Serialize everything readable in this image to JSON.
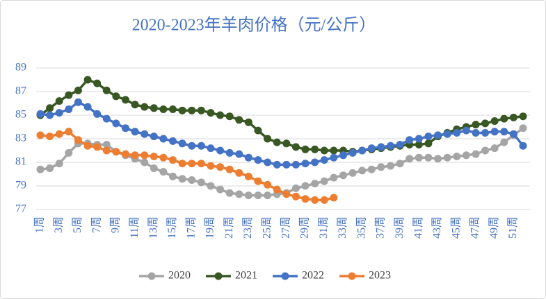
{
  "chart_data": {
    "type": "line",
    "title": "2020-2023年羊肉价格（元/公斤）",
    "categories": [
      "1周",
      null,
      "3周",
      null,
      "5周",
      null,
      "7周",
      null,
      "9周",
      null,
      "11周",
      null,
      "13周",
      null,
      "15周",
      null,
      "17周",
      null,
      "19周",
      null,
      "21周",
      null,
      "23周",
      null,
      "25周",
      null,
      "27周",
      null,
      "29周",
      null,
      "31周",
      null,
      "33周",
      null,
      "35周",
      null,
      "37周",
      null,
      "39周",
      null,
      "41周",
      null,
      "43周",
      null,
      "45周",
      null,
      "47周",
      null,
      "49周",
      null,
      "51周",
      null
    ],
    "ylim": [
      77,
      89
    ],
    "yticks": [
      77,
      79,
      81,
      83,
      85,
      87,
      89
    ],
    "grid": true,
    "legend": "bottom",
    "series": [
      {
        "name": "2020",
        "color": "#a5a5a5",
        "values": [
          80.4,
          80.5,
          80.9,
          81.8,
          82.6,
          82.6,
          82.5,
          82.5,
          81.9,
          81.6,
          81.3,
          81.0,
          80.5,
          80.2,
          79.8,
          79.6,
          79.5,
          79.3,
          79.0,
          78.7,
          78.4,
          78.3,
          78.2,
          78.2,
          78.2,
          78.3,
          78.4,
          78.8,
          79.0,
          79.2,
          79.4,
          79.7,
          79.9,
          80.1,
          80.3,
          80.4,
          80.6,
          80.7,
          80.9,
          81.3,
          81.4,
          81.4,
          81.3,
          81.4,
          81.5,
          81.6,
          81.7,
          82.0,
          82.2,
          82.7,
          83.3,
          83.9
        ]
      },
      {
        "name": "2021",
        "color": "#385723",
        "values": [
          85.0,
          85.6,
          86.2,
          86.7,
          87.1,
          88.0,
          87.7,
          87.1,
          86.6,
          86.3,
          85.9,
          85.7,
          85.6,
          85.5,
          85.5,
          85.4,
          85.4,
          85.4,
          85.2,
          85.0,
          84.9,
          84.6,
          84.4,
          83.7,
          83.0,
          82.7,
          82.6,
          82.3,
          82.1,
          82.1,
          82.0,
          82.0,
          82.0,
          81.9,
          82.0,
          82.1,
          82.2,
          82.3,
          82.4,
          82.5,
          82.5,
          82.6,
          83.2,
          83.5,
          83.8,
          84.0,
          84.2,
          84.3,
          84.5,
          84.7,
          84.8,
          84.9
        ]
      },
      {
        "name": "2022",
        "color": "#4472c4",
        "values": [
          85.1,
          85.0,
          85.2,
          85.5,
          86.1,
          85.7,
          85.1,
          84.7,
          84.3,
          83.9,
          83.6,
          83.4,
          83.2,
          83.0,
          82.8,
          82.6,
          82.4,
          82.4,
          82.2,
          82.0,
          81.8,
          81.7,
          81.4,
          81.2,
          81.0,
          80.8,
          80.8,
          80.8,
          80.9,
          81.0,
          81.2,
          81.4,
          81.6,
          81.8,
          82.0,
          82.2,
          82.3,
          82.4,
          82.5,
          82.9,
          83.0,
          83.2,
          83.3,
          83.4,
          83.5,
          83.7,
          83.5,
          83.5,
          83.6,
          83.6,
          83.4,
          82.4
        ]
      },
      {
        "name": "2023",
        "color": "#ed7d31",
        "values": [
          83.3,
          83.2,
          83.4,
          83.6,
          82.9,
          82.4,
          82.3,
          82.0,
          81.9,
          81.7,
          81.6,
          81.6,
          81.5,
          81.4,
          81.2,
          80.9,
          80.9,
          80.9,
          80.7,
          80.6,
          80.4,
          80.1,
          79.8,
          79.4,
          79.1,
          78.7,
          78.3,
          78.1,
          77.9,
          77.8,
          77.8,
          78.0,
          null,
          null,
          null,
          null,
          null,
          null,
          null,
          null,
          null,
          null,
          null,
          null,
          null,
          null,
          null,
          null,
          null,
          null,
          null,
          null
        ]
      }
    ]
  }
}
